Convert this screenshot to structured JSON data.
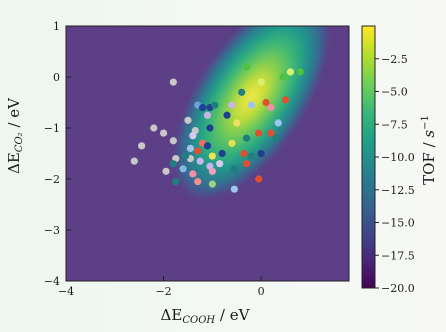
{
  "chart_data": {
    "type": "scatter",
    "background": "heatmap",
    "xlabel": "ΔE_COOH / eV",
    "ylabel": "ΔE_CO₂ / eV",
    "xlim": [
      -4.0,
      1.8
    ],
    "ylim": [
      -4.0,
      1.0
    ],
    "x_ticks": [
      -4,
      -2,
      0
    ],
    "y_ticks": [
      1,
      0,
      -1,
      -2,
      -3,
      -4
    ],
    "colorbar": {
      "label": "TOF / s⁻¹",
      "range": [
        -20.0,
        0.0
      ],
      "ticks": [
        "-2.5",
        "-5.0",
        "-7.5",
        "-10.0",
        "-12.5",
        "-15.0",
        "-17.5",
        "-20.0"
      ],
      "colormap": [
        "#440154",
        "#482878",
        "#3e4a89",
        "#31688e",
        "#26828e",
        "#1f9e89",
        "#35b779",
        "#6ece58",
        "#b5de2b",
        "#fde725"
      ]
    },
    "background_color": "#5c3f86",
    "activity_peak": {
      "x": -0.2,
      "y": -0.4
    },
    "points": [
      {
        "x": -1.8,
        "y": -0.1,
        "color": "#c8c8c8"
      },
      {
        "x": -2.6,
        "y": -1.65,
        "color": "#c8c8c8"
      },
      {
        "x": -2.45,
        "y": -1.35,
        "color": "#c8c8c8"
      },
      {
        "x": -2.2,
        "y": -1.0,
        "color": "#c8c8c8"
      },
      {
        "x": -2.0,
        "y": -1.1,
        "color": "#c8c8c8"
      },
      {
        "x": -1.95,
        "y": -1.85,
        "color": "#c8c8c8"
      },
      {
        "x": -1.8,
        "y": -1.25,
        "color": "#c8c8c8"
      },
      {
        "x": -1.75,
        "y": -1.6,
        "color": "#c8c8c8"
      },
      {
        "x": -1.5,
        "y": -0.85,
        "color": "#c8c8c8"
      },
      {
        "x": -1.35,
        "y": -1.05,
        "color": "#c8c8c8"
      },
      {
        "x": -1.45,
        "y": -1.6,
        "color": "#c8c8c8"
      },
      {
        "x": -1.3,
        "y": -0.55,
        "color": "#6fa0d8"
      },
      {
        "x": -1.2,
        "y": -0.6,
        "color": "#1f3f8f"
      },
      {
        "x": -1.05,
        "y": -0.6,
        "color": "#1f3f8f"
      },
      {
        "x": -0.95,
        "y": -0.55,
        "color": "#1f7f7f"
      },
      {
        "x": -1.1,
        "y": -0.75,
        "color": "#c8b4e8"
      },
      {
        "x": -0.7,
        "y": -0.75,
        "color": "#1f3f8f"
      },
      {
        "x": -1.05,
        "y": -1.0,
        "color": "#1f3f8f"
      },
      {
        "x": -1.4,
        "y": -1.15,
        "color": "#d8c8f0"
      },
      {
        "x": -1.2,
        "y": -1.3,
        "color": "#f07060"
      },
      {
        "x": -1.1,
        "y": -1.35,
        "color": "#1f3f8f"
      },
      {
        "x": -1.3,
        "y": -1.45,
        "color": "#e05030"
      },
      {
        "x": -1.45,
        "y": -1.4,
        "color": "#9fc4f0"
      },
      {
        "x": -1.0,
        "y": -1.55,
        "color": "#f0e060"
      },
      {
        "x": -0.8,
        "y": -1.5,
        "color": "#1f3f8f"
      },
      {
        "x": -0.6,
        "y": -1.3,
        "color": "#e8e050"
      },
      {
        "x": -0.35,
        "y": -1.5,
        "color": "#e05030"
      },
      {
        "x": -1.55,
        "y": -1.55,
        "color": "#1f7f7f"
      },
      {
        "x": -1.8,
        "y": -1.7,
        "color": "#1f7f7f"
      },
      {
        "x": -1.6,
        "y": -1.8,
        "color": "#7fb8e0"
      },
      {
        "x": -1.4,
        "y": -1.9,
        "color": "#f090a8"
      },
      {
        "x": -1.25,
        "y": -1.65,
        "color": "#c8b4e8"
      },
      {
        "x": -1.05,
        "y": -1.75,
        "color": "#c8b4e8"
      },
      {
        "x": -0.85,
        "y": -1.7,
        "color": "#d8c8f0"
      },
      {
        "x": -1.0,
        "y": -1.85,
        "color": "#f0a0c0"
      },
      {
        "x": -1.3,
        "y": -2.05,
        "color": "#f09090"
      },
      {
        "x": -1.75,
        "y": -2.05,
        "color": "#1f7f7f"
      },
      {
        "x": -1.0,
        "y": -2.1,
        "color": "#9fd080"
      },
      {
        "x": -0.55,
        "y": -2.2,
        "color": "#9fc4f0"
      },
      {
        "x": -0.55,
        "y": -1.8,
        "color": "#1f7f7f"
      },
      {
        "x": -0.3,
        "y": -1.7,
        "color": "#e05030"
      },
      {
        "x": -0.2,
        "y": -1.55,
        "color": "#1f7f7f"
      },
      {
        "x": 0.0,
        "y": -1.5,
        "color": "#1f3f8f"
      },
      {
        "x": -0.3,
        "y": -1.2,
        "color": "#1f7f7f"
      },
      {
        "x": -0.05,
        "y": -1.1,
        "color": "#e05030"
      },
      {
        "x": 0.2,
        "y": -1.1,
        "color": "#e05030"
      },
      {
        "x": 0.3,
        "y": -1.2,
        "color": "#1f7f7f"
      },
      {
        "x": 0.35,
        "y": -0.9,
        "color": "#9fc4f0"
      },
      {
        "x": -0.5,
        "y": -0.9,
        "color": "#f0e060"
      },
      {
        "x": -0.6,
        "y": -0.55,
        "color": "#c8b4e8"
      },
      {
        "x": -0.4,
        "y": -0.3,
        "color": "#1f7f7f"
      },
      {
        "x": -0.2,
        "y": -0.55,
        "color": "#9fc4f0"
      },
      {
        "x": 0.1,
        "y": -0.5,
        "color": "#e05030"
      },
      {
        "x": 0.2,
        "y": -0.6,
        "color": "#f090a8"
      },
      {
        "x": 0.5,
        "y": -0.45,
        "color": "#e05030"
      },
      {
        "x": 0.45,
        "y": 0.0,
        "color": "#4fc040"
      },
      {
        "x": 0.6,
        "y": 0.1,
        "color": "#d8f070"
      },
      {
        "x": 0.8,
        "y": 0.1,
        "color": "#4fc040"
      },
      {
        "x": -0.3,
        "y": 0.2,
        "color": "#4fc040"
      },
      {
        "x": 0.0,
        "y": -0.1,
        "color": "#d8f070"
      },
      {
        "x": -0.05,
        "y": -2.0,
        "color": "#e05030"
      }
    ]
  }
}
